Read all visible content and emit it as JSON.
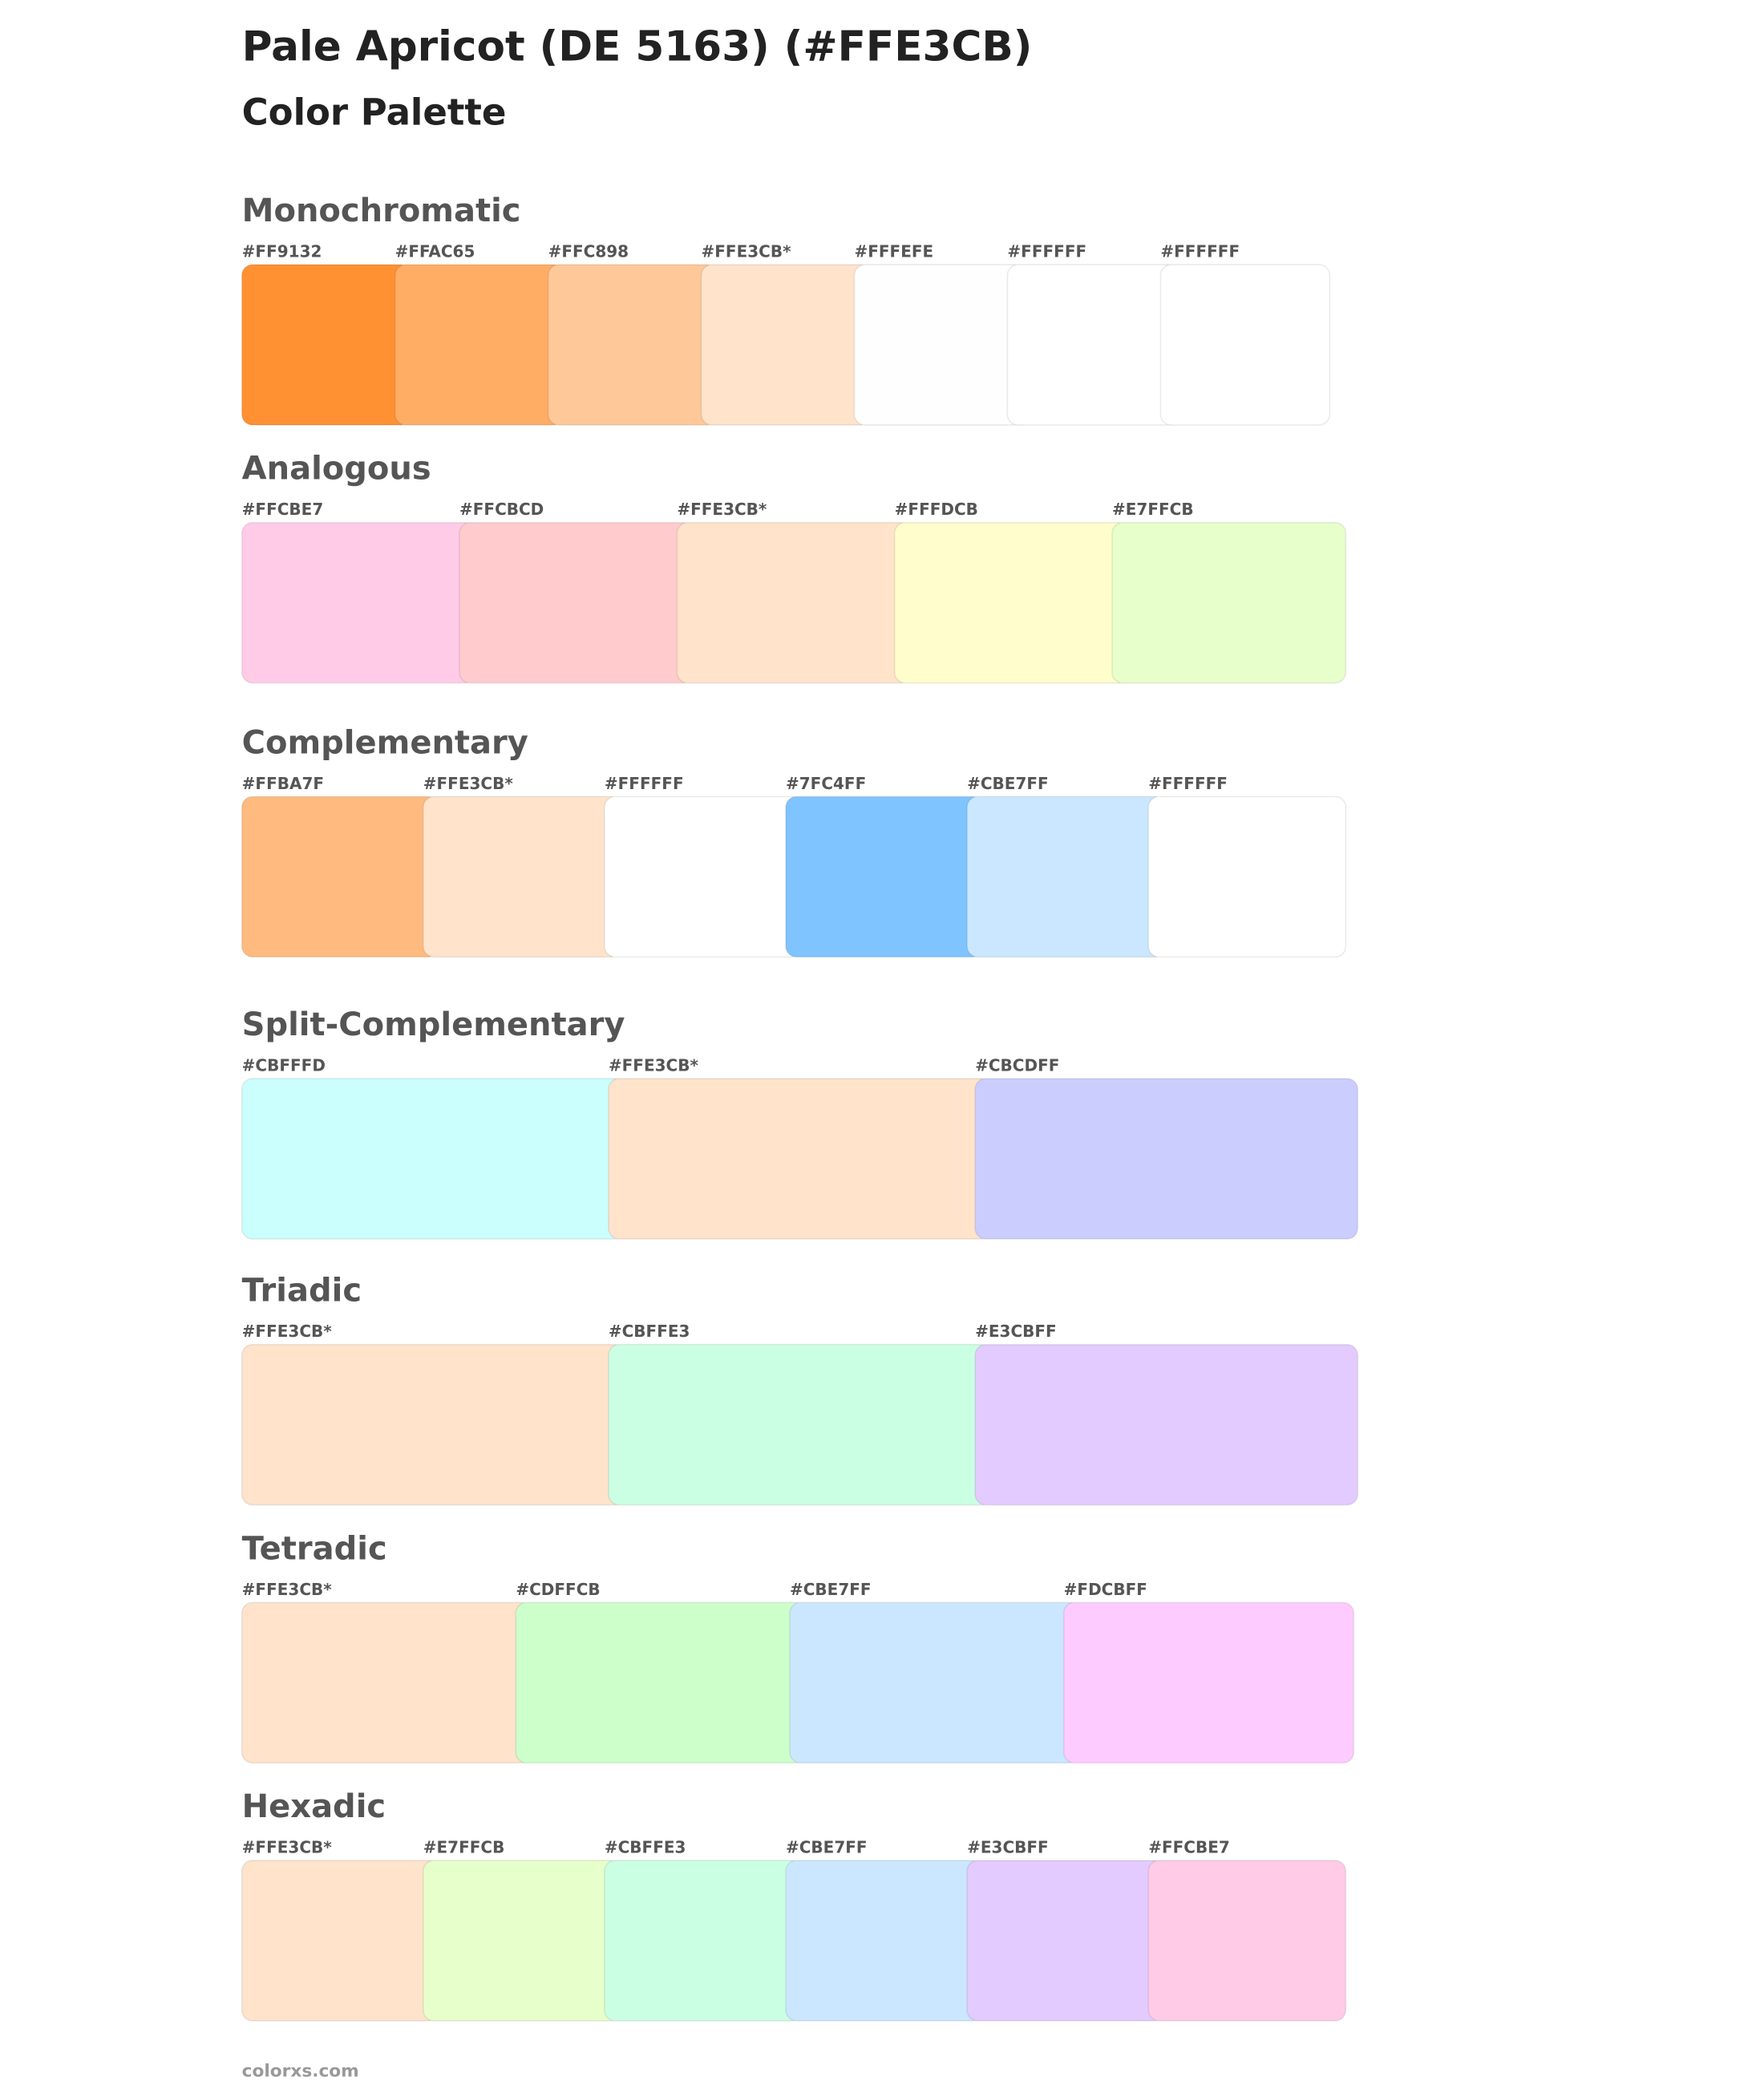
{
  "header": {
    "title": "Pale Apricot (DE 5163) (#FFE3CB)",
    "subtitle": "Color Palette"
  },
  "sections": [
    {
      "name": "Monochromatic",
      "swatches": [
        {
          "label": "#FF9132",
          "color": "#FF9132"
        },
        {
          "label": "#FFAC65",
          "color": "#FFAC65"
        },
        {
          "label": "#FFC898",
          "color": "#FFC898"
        },
        {
          "label": "#FFE3CB*",
          "color": "#FFE3CB"
        },
        {
          "label": "#FFFEFE",
          "color": "#FFFEFE"
        },
        {
          "label": "#FFFFFF",
          "color": "#FFFFFF"
        },
        {
          "label": "#FFFFFF",
          "color": "#FFFFFF"
        }
      ]
    },
    {
      "name": "Analogous",
      "swatches": [
        {
          "label": "#FFCBE7",
          "color": "#FFCBE7"
        },
        {
          "label": "#FFCBCD",
          "color": "#FFCBCD"
        },
        {
          "label": "#FFE3CB*",
          "color": "#FFE3CB"
        },
        {
          "label": "#FFFDCB",
          "color": "#FFFDCB"
        },
        {
          "label": "#E7FFCB",
          "color": "#E7FFCB"
        }
      ]
    },
    {
      "name": "Complementary",
      "swatches": [
        {
          "label": "#FFBA7F",
          "color": "#FFBA7F"
        },
        {
          "label": "#FFE3CB*",
          "color": "#FFE3CB"
        },
        {
          "label": "#FFFFFF",
          "color": "#FFFFFF"
        },
        {
          "label": "#7FC4FF",
          "color": "#7FC4FF"
        },
        {
          "label": "#CBE7FF",
          "color": "#CBE7FF"
        },
        {
          "label": "#FFFFFF",
          "color": "#FFFFFF"
        }
      ]
    },
    {
      "name": "Split-Complementary",
      "swatches": [
        {
          "label": "#CBFFFD",
          "color": "#CBFFFD"
        },
        {
          "label": "#FFE3CB*",
          "color": "#FFE3CB"
        },
        {
          "label": "#CBCDFF",
          "color": "#CBCDFF"
        }
      ]
    },
    {
      "name": "Triadic",
      "swatches": [
        {
          "label": "#FFE3CB*",
          "color": "#FFE3CB"
        },
        {
          "label": "#CBFFE3",
          "color": "#CBFFE3"
        },
        {
          "label": "#E3CBFF",
          "color": "#E3CBFF"
        }
      ]
    },
    {
      "name": "Tetradic",
      "swatches": [
        {
          "label": "#FFE3CB*",
          "color": "#FFE3CB"
        },
        {
          "label": "#CDFFCB",
          "color": "#CDFFCB"
        },
        {
          "label": "#CBE7FF",
          "color": "#CBE7FF"
        },
        {
          "label": "#FDCBFF",
          "color": "#FDCBFF"
        }
      ]
    },
    {
      "name": "Hexadic",
      "swatches": [
        {
          "label": "#FFE3CB*",
          "color": "#FFE3CB"
        },
        {
          "label": "#E7FFCB",
          "color": "#E7FFCB"
        },
        {
          "label": "#CBFFE3",
          "color": "#CBFFE3"
        },
        {
          "label": "#CBE7FF",
          "color": "#CBE7FF"
        },
        {
          "label": "#E3CBFF",
          "color": "#E3CBFF"
        },
        {
          "label": "#FFCBE7",
          "color": "#FFCBE7"
        }
      ]
    }
  ],
  "footer": "colorxs.com"
}
